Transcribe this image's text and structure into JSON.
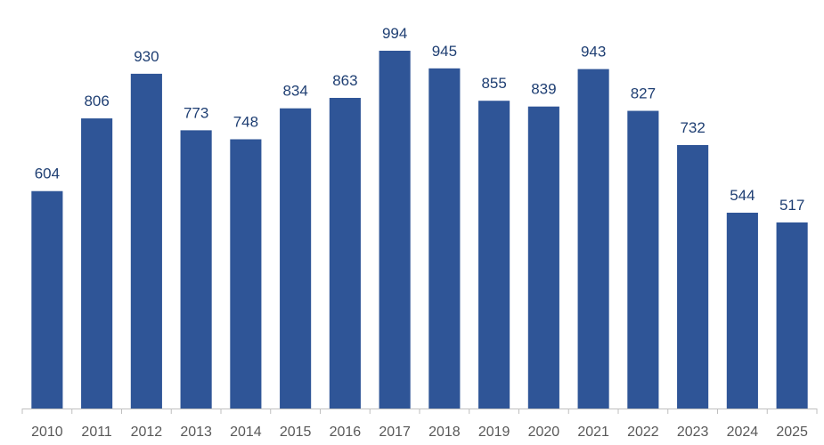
{
  "chart_data": {
    "type": "bar",
    "categories": [
      "2010",
      "2011",
      "2012",
      "2013",
      "2014",
      "2015",
      "2016",
      "2017",
      "2018",
      "2019",
      "2020",
      "2021",
      "2022",
      "2023",
      "2024",
      "2025"
    ],
    "values": [
      604,
      806,
      930,
      773,
      748,
      834,
      863,
      994,
      945,
      855,
      839,
      943,
      827,
      732,
      544,
      517
    ],
    "ylim": [
      0,
      1000
    ],
    "grid": false,
    "legend": "none",
    "data_labels": true
  },
  "colors": {
    "bar": "#2F5597",
    "data_label": "#1F3F73",
    "axis_line": "#BFBFBF",
    "tick_label": "#595959"
  }
}
